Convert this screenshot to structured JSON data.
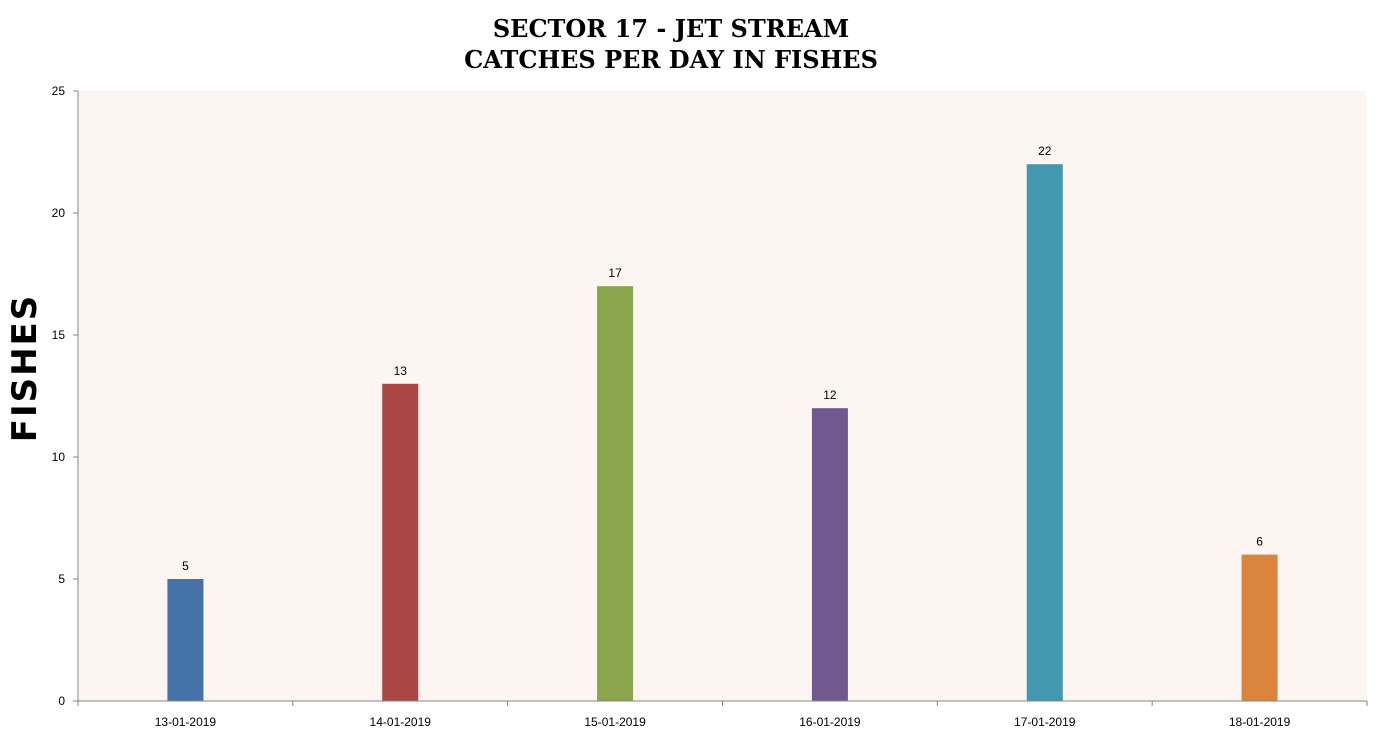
{
  "chart_data": {
    "type": "bar",
    "title": "SECTOR 17 - JET STREAM",
    "subtitle": "CATCHES PER DAY IN FISHES",
    "xlabel": "",
    "ylabel": "FISHES",
    "categories": [
      "13-01-2019",
      "14-01-2019",
      "15-01-2019",
      "16-01-2019",
      "17-01-2019",
      "18-01-2019"
    ],
    "values": [
      5,
      13,
      17,
      12,
      22,
      6
    ],
    "bar_colors": [
      "#4572a7",
      "#aa4643",
      "#89a54e",
      "#71588f",
      "#4198af",
      "#db843d"
    ],
    "ylim": [
      0,
      25
    ],
    "yticks": [
      "0",
      "5",
      "10",
      "15",
      "20",
      "25"
    ],
    "data_labels": [
      "5",
      "13",
      "17",
      "12",
      "22",
      "6"
    ],
    "plot_background": "#fdf5f1",
    "grid": false,
    "legend": "none"
  }
}
